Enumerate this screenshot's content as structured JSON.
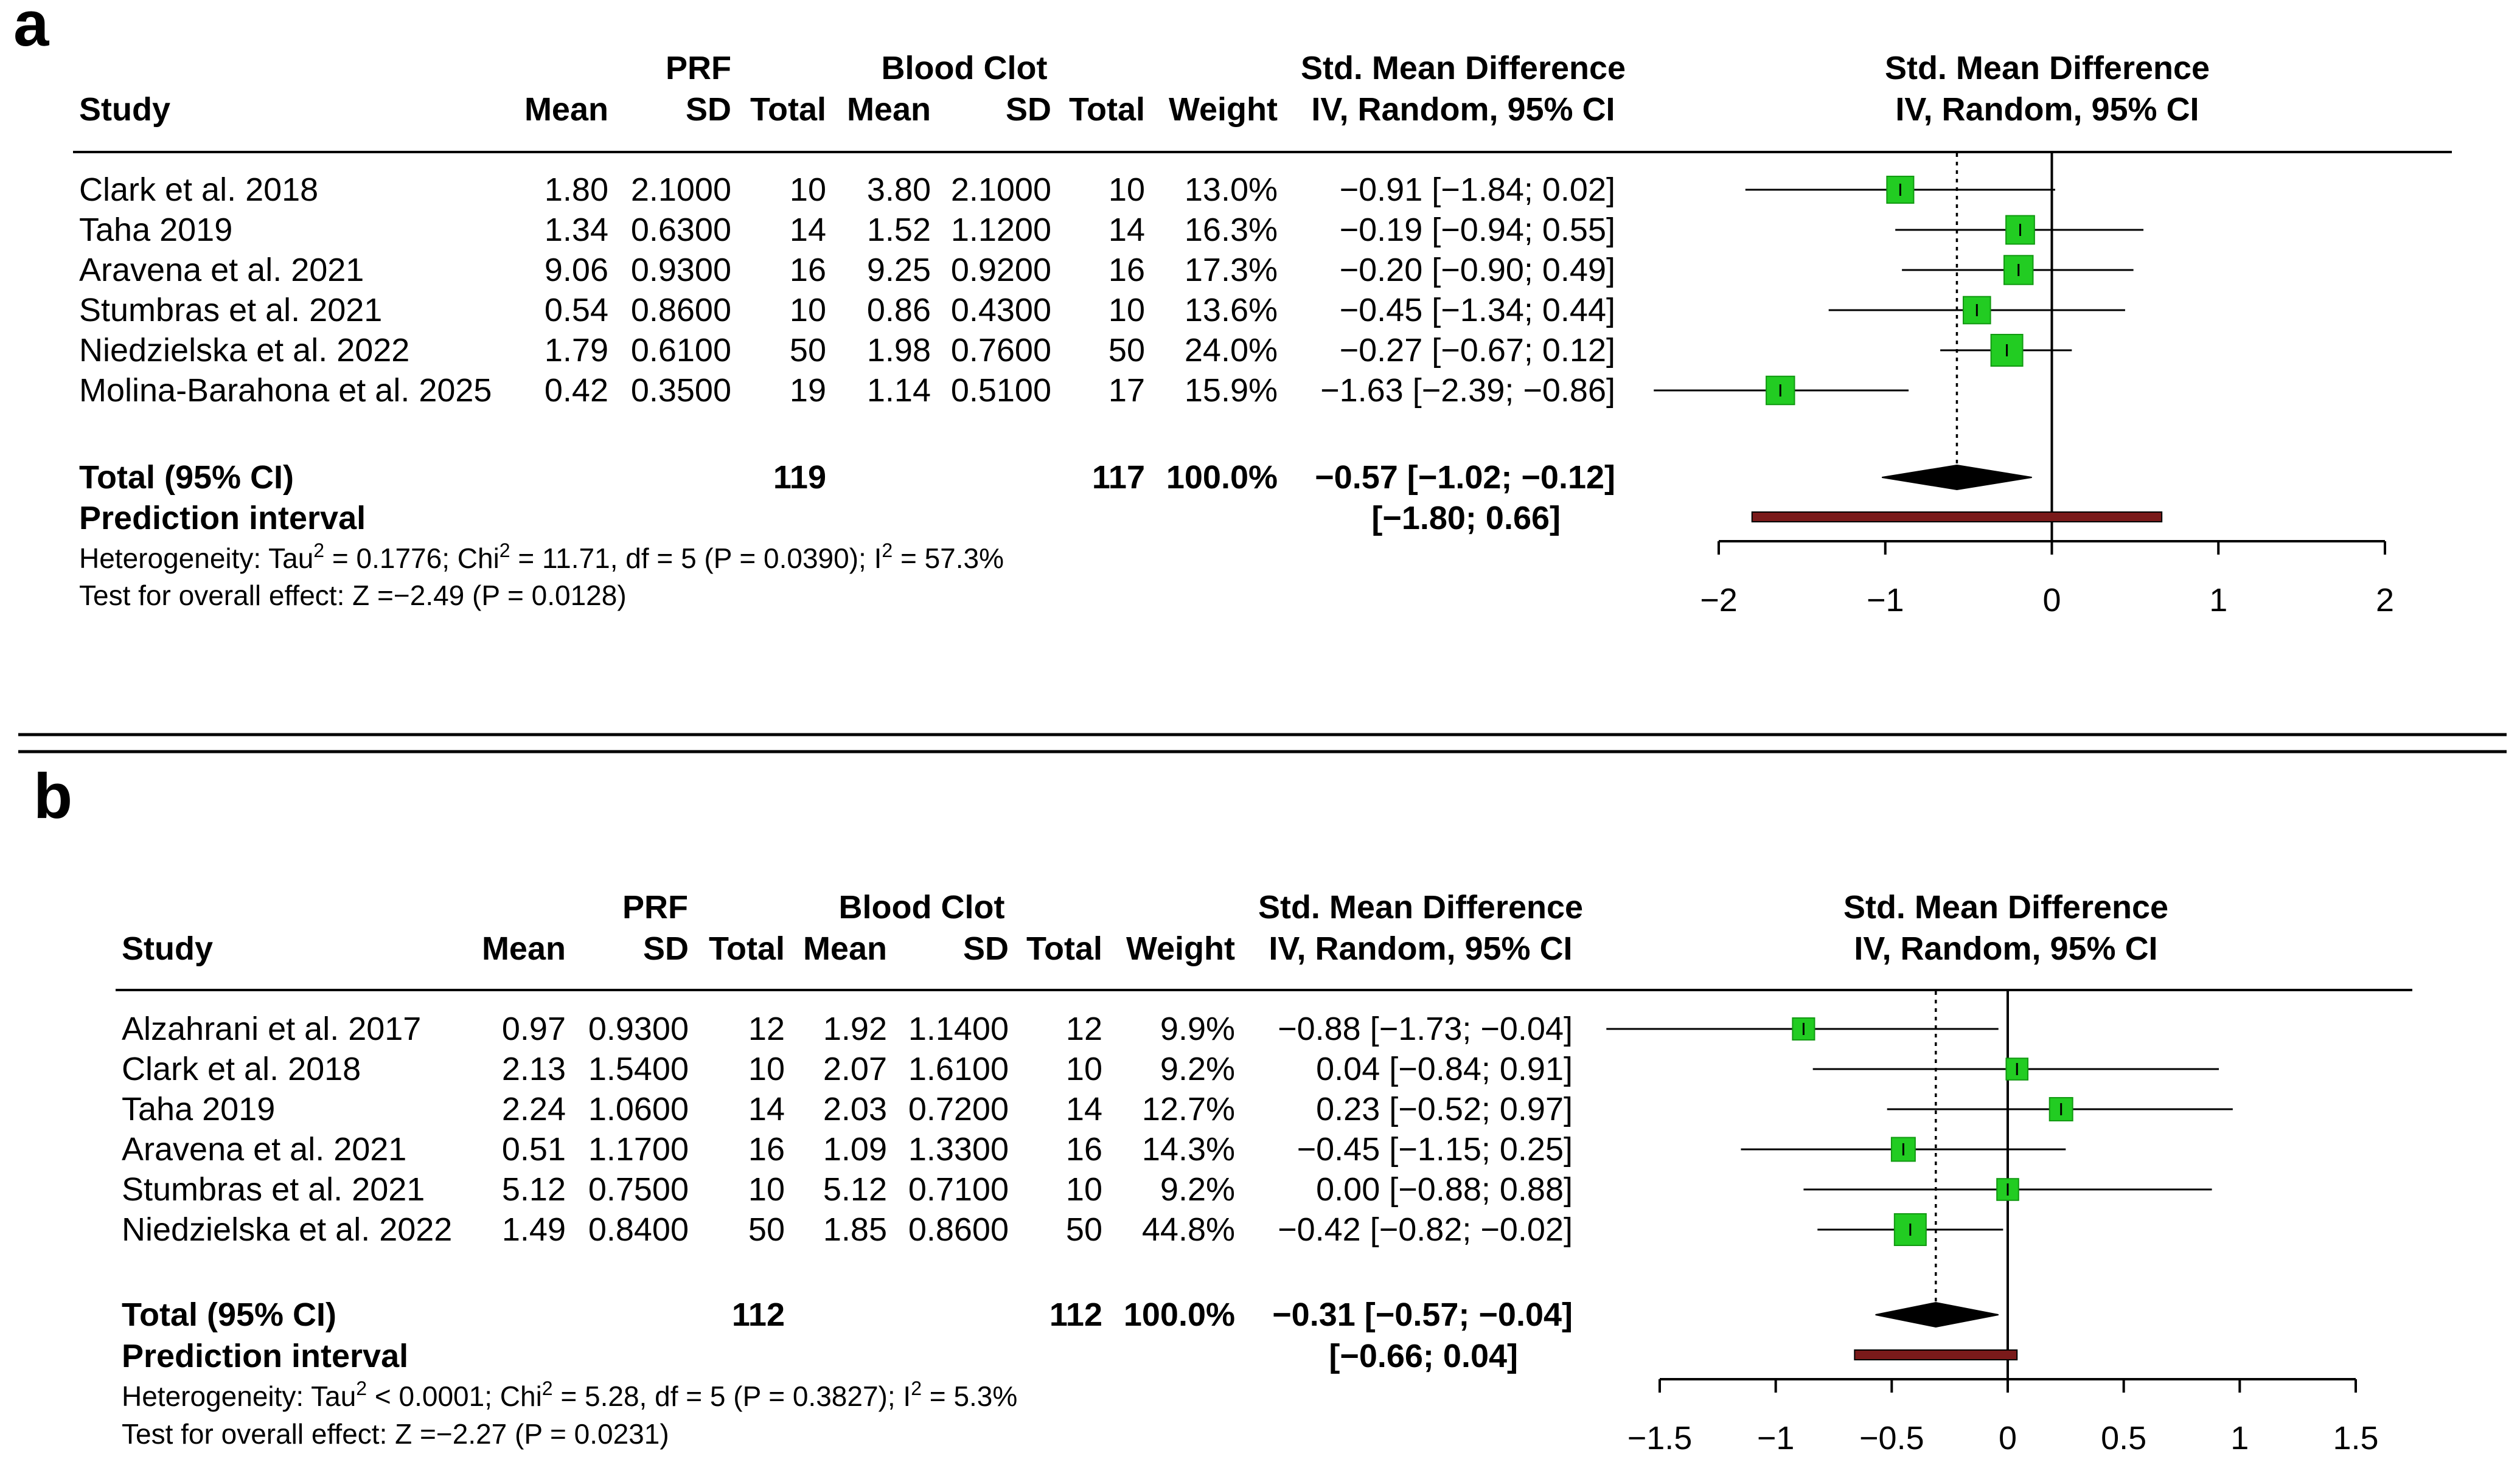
{
  "chart_data": [
    {
      "panel": "a",
      "type": "forest",
      "headers": {
        "group1": "PRF",
        "group2": "Blood Clot",
        "study": "Study",
        "mean1": "Mean",
        "sd1": "SD",
        "total1": "Total",
        "mean2": "Mean",
        "sd2": "SD",
        "total2": "Total",
        "weight": "Weight",
        "ci_title_1": "Std. Mean Difference",
        "ci_title_2": "IV, Random, 95% CI",
        "plot_title_1": "Std. Mean Difference",
        "plot_title_2": "IV, Random, 95% CI"
      },
      "studies": [
        {
          "study": "Clark et al. 2018",
          "mean1": "1.80",
          "sd1": "2.1000",
          "total1": "10",
          "mean2": "3.80",
          "sd2": "2.1000",
          "total2": "10",
          "weight": "13.0%",
          "ci_text": "−0.91 [−1.84;  0.02]",
          "est": -0.91,
          "lo": -1.84,
          "hi": 0.02,
          "w": 13.0
        },
        {
          "study": "Taha 2019",
          "mean1": "1.34",
          "sd1": "0.6300",
          "total1": "14",
          "mean2": "1.52",
          "sd2": "1.1200",
          "total2": "14",
          "weight": "16.3%",
          "ci_text": "−0.19 [−0.94;  0.55]",
          "est": -0.19,
          "lo": -0.94,
          "hi": 0.55,
          "w": 16.3
        },
        {
          "study": "Aravena et al. 2021",
          "mean1": "9.06",
          "sd1": "0.9300",
          "total1": "16",
          "mean2": "9.25",
          "sd2": "0.9200",
          "total2": "16",
          "weight": "17.3%",
          "ci_text": "−0.20 [−0.90;  0.49]",
          "est": -0.2,
          "lo": -0.9,
          "hi": 0.49,
          "w": 17.3
        },
        {
          "study": "Stumbras et al. 2021",
          "mean1": "0.54",
          "sd1": "0.8600",
          "total1": "10",
          "mean2": "0.86",
          "sd2": "0.4300",
          "total2": "10",
          "weight": "13.6%",
          "ci_text": "−0.45 [−1.34;  0.44]",
          "est": -0.45,
          "lo": -1.34,
          "hi": 0.44,
          "w": 13.6
        },
        {
          "study": "Niedzielska et al. 2022",
          "mean1": "1.79",
          "sd1": "0.6100",
          "total1": "50",
          "mean2": "1.98",
          "sd2": "0.7600",
          "total2": "50",
          "weight": "24.0%",
          "ci_text": "−0.27 [−0.67;  0.12]",
          "est": -0.27,
          "lo": -0.67,
          "hi": 0.12,
          "w": 24.0
        },
        {
          "study": "Molina-Barahona et al. 2025",
          "mean1": "0.42",
          "sd1": "0.3500",
          "total1": "19",
          "mean2": "1.14",
          "sd2": "0.5100",
          "total2": "17",
          "weight": "15.9%",
          "ci_text": "−1.63 [−2.39; −0.86]",
          "est": -1.63,
          "lo": -2.39,
          "hi": -0.86,
          "w": 15.9
        }
      ],
      "total": {
        "label": "Total (95% CI)",
        "total1": "119",
        "total2": "117",
        "weight": "100.0%",
        "ci_text": "−0.57 [−1.02; −0.12]",
        "est": -0.57,
        "lo": -1.02,
        "hi": -0.12
      },
      "prediction": {
        "label": "Prediction interval",
        "ci_text": "[−1.80;  0.66]",
        "lo": -1.8,
        "hi": 0.66
      },
      "heterogeneity": {
        "prefix": "Heterogeneity: Tau",
        "p1": " = 0.1776; Chi",
        "p2": " = 11.71, df = 5 (P = 0.0390); I",
        "p3": " = 57.3%",
        "sup": "2"
      },
      "overall_test": "Test for overall effect: Z =−2.49 (P = 0.0128)",
      "axis": {
        "min": -2,
        "max": 2,
        "ticks": [
          -2,
          -1,
          0,
          1,
          2
        ],
        "tick_labels": [
          "−2",
          "−1",
          "0",
          "1",
          "2"
        ]
      }
    },
    {
      "panel": "b",
      "type": "forest",
      "headers": {
        "group1": "PRF",
        "group2": "Blood Clot",
        "study": "Study",
        "mean1": "Mean",
        "sd1": "SD",
        "total1": "Total",
        "mean2": "Mean",
        "sd2": "SD",
        "total2": "Total",
        "weight": "Weight",
        "ci_title_1": "Std. Mean Difference",
        "ci_title_2": "IV, Random, 95% CI",
        "plot_title_1": "Std. Mean Difference",
        "plot_title_2": "IV, Random, 95% CI"
      },
      "studies": [
        {
          "study": "Alzahrani et al. 2017",
          "mean1": "0.97",
          "sd1": "0.9300",
          "total1": "12",
          "mean2": "1.92",
          "sd2": "1.1400",
          "total2": "12",
          "weight": "9.9%",
          "ci_text": "−0.88 [−1.73; −0.04]",
          "est": -0.88,
          "lo": -1.73,
          "hi": -0.04,
          "w": 9.9
        },
        {
          "study": "Clark et al. 2018",
          "mean1": "2.13",
          "sd1": "1.5400",
          "total1": "10",
          "mean2": "2.07",
          "sd2": "1.6100",
          "total2": "10",
          "weight": "9.2%",
          "ci_text": "0.04 [−0.84;  0.91]",
          "est": 0.04,
          "lo": -0.84,
          "hi": 0.91,
          "w": 9.2
        },
        {
          "study": "Taha 2019",
          "mean1": "2.24",
          "sd1": "1.0600",
          "total1": "14",
          "mean2": "2.03",
          "sd2": "0.7200",
          "total2": "14",
          "weight": "12.7%",
          "ci_text": "0.23 [−0.52;  0.97]",
          "est": 0.23,
          "lo": -0.52,
          "hi": 0.97,
          "w": 12.7
        },
        {
          "study": "Aravena et al. 2021",
          "mean1": "0.51",
          "sd1": "1.1700",
          "total1": "16",
          "mean2": "1.09",
          "sd2": "1.3300",
          "total2": "16",
          "weight": "14.3%",
          "ci_text": "−0.45 [−1.15;  0.25]",
          "est": -0.45,
          "lo": -1.15,
          "hi": 0.25,
          "w": 14.3
        },
        {
          "study": "Stumbras et al. 2021",
          "mean1": "5.12",
          "sd1": "0.7500",
          "total1": "10",
          "mean2": "5.12",
          "sd2": "0.7100",
          "total2": "10",
          "weight": "9.2%",
          "ci_text": "0.00 [−0.88;  0.88]",
          "est": 0.0,
          "lo": -0.88,
          "hi": 0.88,
          "w": 9.2
        },
        {
          "study": "Niedzielska et al. 2022",
          "mean1": "1.49",
          "sd1": "0.8400",
          "total1": "50",
          "mean2": "1.85",
          "sd2": "0.8600",
          "total2": "50",
          "weight": "44.8%",
          "ci_text": "−0.42 [−0.82; −0.02]",
          "est": -0.42,
          "lo": -0.82,
          "hi": -0.02,
          "w": 44.8
        }
      ],
      "total": {
        "label": "Total (95% CI)",
        "total1": "112",
        "total2": "112",
        "weight": "100.0%",
        "ci_text": "−0.31 [−0.57; −0.04]",
        "est": -0.31,
        "lo": -0.57,
        "hi": -0.04
      },
      "prediction": {
        "label": "Prediction interval",
        "ci_text": "[−0.66;  0.04]",
        "lo": -0.66,
        "hi": 0.04
      },
      "heterogeneity": {
        "prefix": "Heterogeneity: Tau",
        "p1": " < 0.0001; Chi",
        "p2": " = 5.28, df = 5 (P = 0.3827); I",
        "p3": " = 5.3%",
        "sup": "2"
      },
      "overall_test": "Test for overall effect: Z =−2.27 (P = 0.0231)",
      "axis": {
        "min": -1.5,
        "max": 1.5,
        "ticks": [
          -1.5,
          -1,
          -0.5,
          0,
          0.5,
          1,
          1.5
        ],
        "tick_labels": [
          "−1.5",
          "−1",
          "−0.5",
          "0",
          "0.5",
          "1",
          "1.5"
        ]
      }
    }
  ],
  "colors": {
    "square": "#22cc22",
    "square_edge": "#119911",
    "diamond": "#000000",
    "prediction": "#7a1a1a",
    "line": "#000000"
  }
}
